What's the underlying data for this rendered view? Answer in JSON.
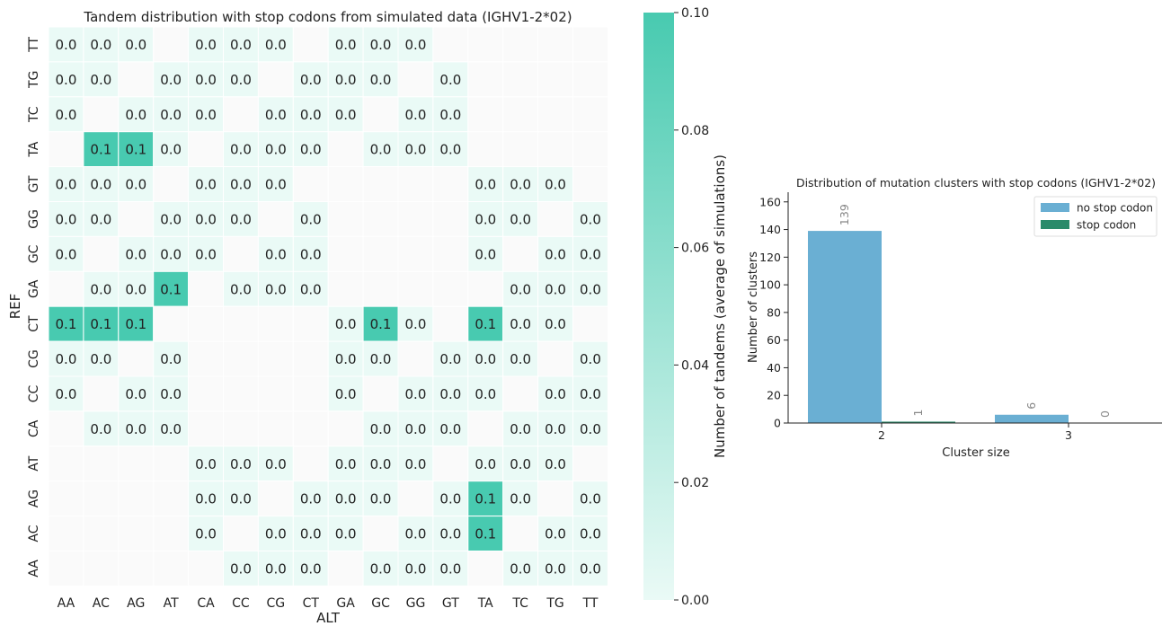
{
  "chart_data": [
    {
      "type": "heatmap",
      "title": "Tandem distribution with stop codons from simulated data (IGHV1-2*02)",
      "xlabel": "ALT",
      "ylabel": "REF",
      "x_categories": [
        "AA",
        "AC",
        "AG",
        "AT",
        "CA",
        "CC",
        "CG",
        "CT",
        "GA",
        "GC",
        "GG",
        "GT",
        "TA",
        "TC",
        "TG",
        "TT"
      ],
      "y_categories": [
        "TT",
        "TG",
        "TC",
        "TA",
        "GT",
        "GG",
        "GC",
        "GA",
        "CT",
        "CG",
        "CC",
        "CA",
        "AT",
        "AG",
        "AC",
        "AA"
      ],
      "values": [
        [
          0.0,
          0.0,
          0.0,
          null,
          0.0,
          0.0,
          0.0,
          null,
          0.0,
          0.0,
          0.0,
          null,
          null,
          null,
          null,
          null
        ],
        [
          0.0,
          0.0,
          null,
          0.0,
          0.0,
          0.0,
          null,
          0.0,
          0.0,
          0.0,
          null,
          0.0,
          null,
          null,
          null,
          null
        ],
        [
          0.0,
          null,
          0.0,
          0.0,
          0.0,
          null,
          0.0,
          0.0,
          0.0,
          null,
          0.0,
          0.0,
          null,
          null,
          null,
          null
        ],
        [
          null,
          0.1,
          0.1,
          0.0,
          null,
          0.0,
          0.0,
          0.0,
          null,
          0.0,
          0.0,
          0.0,
          null,
          null,
          null,
          null
        ],
        [
          0.0,
          0.0,
          0.0,
          null,
          0.0,
          0.0,
          0.0,
          null,
          null,
          null,
          null,
          null,
          0.0,
          0.0,
          0.0,
          null
        ],
        [
          0.0,
          0.0,
          null,
          0.0,
          0.0,
          0.0,
          null,
          0.0,
          null,
          null,
          null,
          null,
          0.0,
          0.0,
          null,
          0.0
        ],
        [
          0.0,
          null,
          0.0,
          0.0,
          0.0,
          null,
          0.0,
          0.0,
          null,
          null,
          null,
          null,
          0.0,
          null,
          0.0,
          0.0
        ],
        [
          null,
          0.0,
          0.0,
          0.1,
          null,
          0.0,
          0.0,
          0.0,
          null,
          null,
          null,
          null,
          null,
          0.0,
          0.0,
          0.0
        ],
        [
          0.1,
          0.1,
          0.1,
          null,
          null,
          null,
          null,
          null,
          0.0,
          0.1,
          0.0,
          null,
          0.1,
          0.0,
          0.0,
          null
        ],
        [
          0.0,
          0.0,
          null,
          0.0,
          null,
          null,
          null,
          null,
          0.0,
          0.0,
          null,
          0.0,
          0.0,
          0.0,
          null,
          0.0
        ],
        [
          0.0,
          null,
          0.0,
          0.0,
          null,
          null,
          null,
          null,
          0.0,
          null,
          0.0,
          0.0,
          0.0,
          null,
          0.0,
          0.0
        ],
        [
          null,
          0.0,
          0.0,
          0.0,
          null,
          null,
          null,
          null,
          null,
          0.0,
          0.0,
          0.0,
          null,
          0.0,
          0.0,
          0.0
        ],
        [
          null,
          null,
          null,
          null,
          0.0,
          0.0,
          0.0,
          null,
          0.0,
          0.0,
          0.0,
          null,
          0.0,
          0.0,
          0.0,
          null
        ],
        [
          null,
          null,
          null,
          null,
          0.0,
          0.0,
          null,
          0.0,
          0.0,
          0.0,
          null,
          0.0,
          0.1,
          0.0,
          null,
          0.0
        ],
        [
          null,
          null,
          null,
          null,
          0.0,
          null,
          0.0,
          0.0,
          0.0,
          null,
          0.0,
          0.0,
          0.1,
          null,
          0.0,
          0.0
        ],
        [
          null,
          null,
          null,
          null,
          null,
          0.0,
          0.0,
          0.0,
          null,
          0.0,
          0.0,
          0.0,
          null,
          0.0,
          0.0,
          0.0
        ]
      ],
      "colorbar": {
        "label": "Number of tandems (average of simulations)",
        "range": [
          0.0,
          0.1
        ],
        "ticks": [
          "0.00",
          "0.02",
          "0.04",
          "0.06",
          "0.08",
          "0.10"
        ],
        "color_low": "#eafaf6",
        "color_high": "#48cab0"
      },
      "grid": false
    },
    {
      "type": "bar",
      "title": "Distribution of mutation clusters with stop codons (IGHV1-2*02)",
      "xlabel": "Cluster size",
      "ylabel": "Number of clusters",
      "categories": [
        "2",
        "3"
      ],
      "series": [
        {
          "name": "no stop codon",
          "values": [
            139,
            6
          ],
          "color": "#6aafd3"
        },
        {
          "name": "stop codon",
          "values": [
            1,
            0
          ],
          "color": "#2a8a6a"
        }
      ],
      "ylim": [
        0,
        167
      ],
      "yticks": [
        "0",
        "20",
        "40",
        "60",
        "80",
        "100",
        "120",
        "140",
        "160"
      ],
      "legend": "top-right",
      "grid": false
    }
  ]
}
